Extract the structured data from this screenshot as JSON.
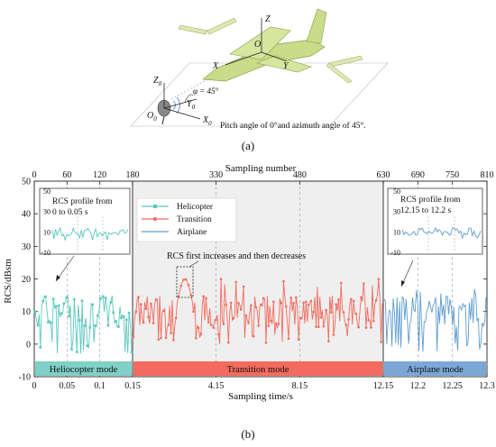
{
  "panel_a": {
    "caption": "(a)",
    "axis_labels": {
      "z": "Z",
      "y": "Y",
      "x": "X",
      "o": "O",
      "z0": "Z",
      "z0_sub": "0",
      "y0": "Y",
      "y0_sub": "0",
      "x0": "X",
      "x0_sub": "0",
      "o0": "O",
      "o0_sub": "0"
    },
    "phi_label": "φ = 45°",
    "description": "Pitch angle of 0°and azimuth angle of 45°."
  },
  "panel_b": {
    "caption": "(b)"
  },
  "chart_data": {
    "type": "line",
    "title": "",
    "xlabel": "Sampling time/s",
    "x2label": "Sampling number",
    "ylabel": "RCS/dBsm",
    "ylim": [
      -10,
      50
    ],
    "y_ticks": [
      "-10",
      "0",
      "10",
      "20",
      "30",
      "40",
      "50"
    ],
    "top_ticks": [
      "0",
      "60",
      "120",
      "180",
      "330",
      "480",
      "630",
      "690",
      "750",
      "810"
    ],
    "bottom_ticks": [
      "0",
      "0.05",
      "0.1",
      "0.15",
      "4.15",
      "8.15",
      "12.15",
      "12.2",
      "12.25",
      "12.3"
    ],
    "legend": {
      "placement": "top-center",
      "entries": [
        "Helicopter",
        "Transition",
        "Airplane"
      ]
    },
    "series": [
      {
        "name": "Helicopter",
        "color": "#5bc8be",
        "sample_range": [
          0,
          180
        ],
        "time_range_s": [
          0,
          0.15
        ],
        "mean": 10,
        "min": -3,
        "max": 16
      },
      {
        "name": "Transition",
        "color": "#f36b5e",
        "sample_range": [
          180,
          630
        ],
        "time_range_s": [
          0.15,
          12.15
        ],
        "mean": 10,
        "min": 0,
        "max": 20
      },
      {
        "name": "Airplane",
        "color": "#5e9bd0",
        "sample_range": [
          630,
          810
        ],
        "time_range_s": [
          12.15,
          12.3
        ],
        "mean": 10,
        "min": -3,
        "max": 17
      }
    ],
    "insets": [
      {
        "label": "RCS profile from 0 to 0.05 s",
        "line1": "RCS profile from",
        "line2": "0 to 0.05 s",
        "yticks": [
          "50",
          "30",
          "10",
          "-10"
        ]
      },
      {
        "label": "RCS profile from 12.15 to 12.2 s",
        "line1": "RCS profile from",
        "line2": "12.15 to 12.2 s",
        "yticks": [
          "50",
          "30",
          "10",
          "-10"
        ]
      }
    ],
    "annotation": "RCS first increases and then decreases",
    "mode_bars": [
      {
        "label": "Heliocopter mode",
        "color": "#7fd0c6"
      },
      {
        "label": "Transition mode",
        "color": "#f36b5e"
      },
      {
        "label": "Airplane mode",
        "color": "#7aa7d6"
      }
    ],
    "grid": "dashed vertical at inner ticks"
  }
}
